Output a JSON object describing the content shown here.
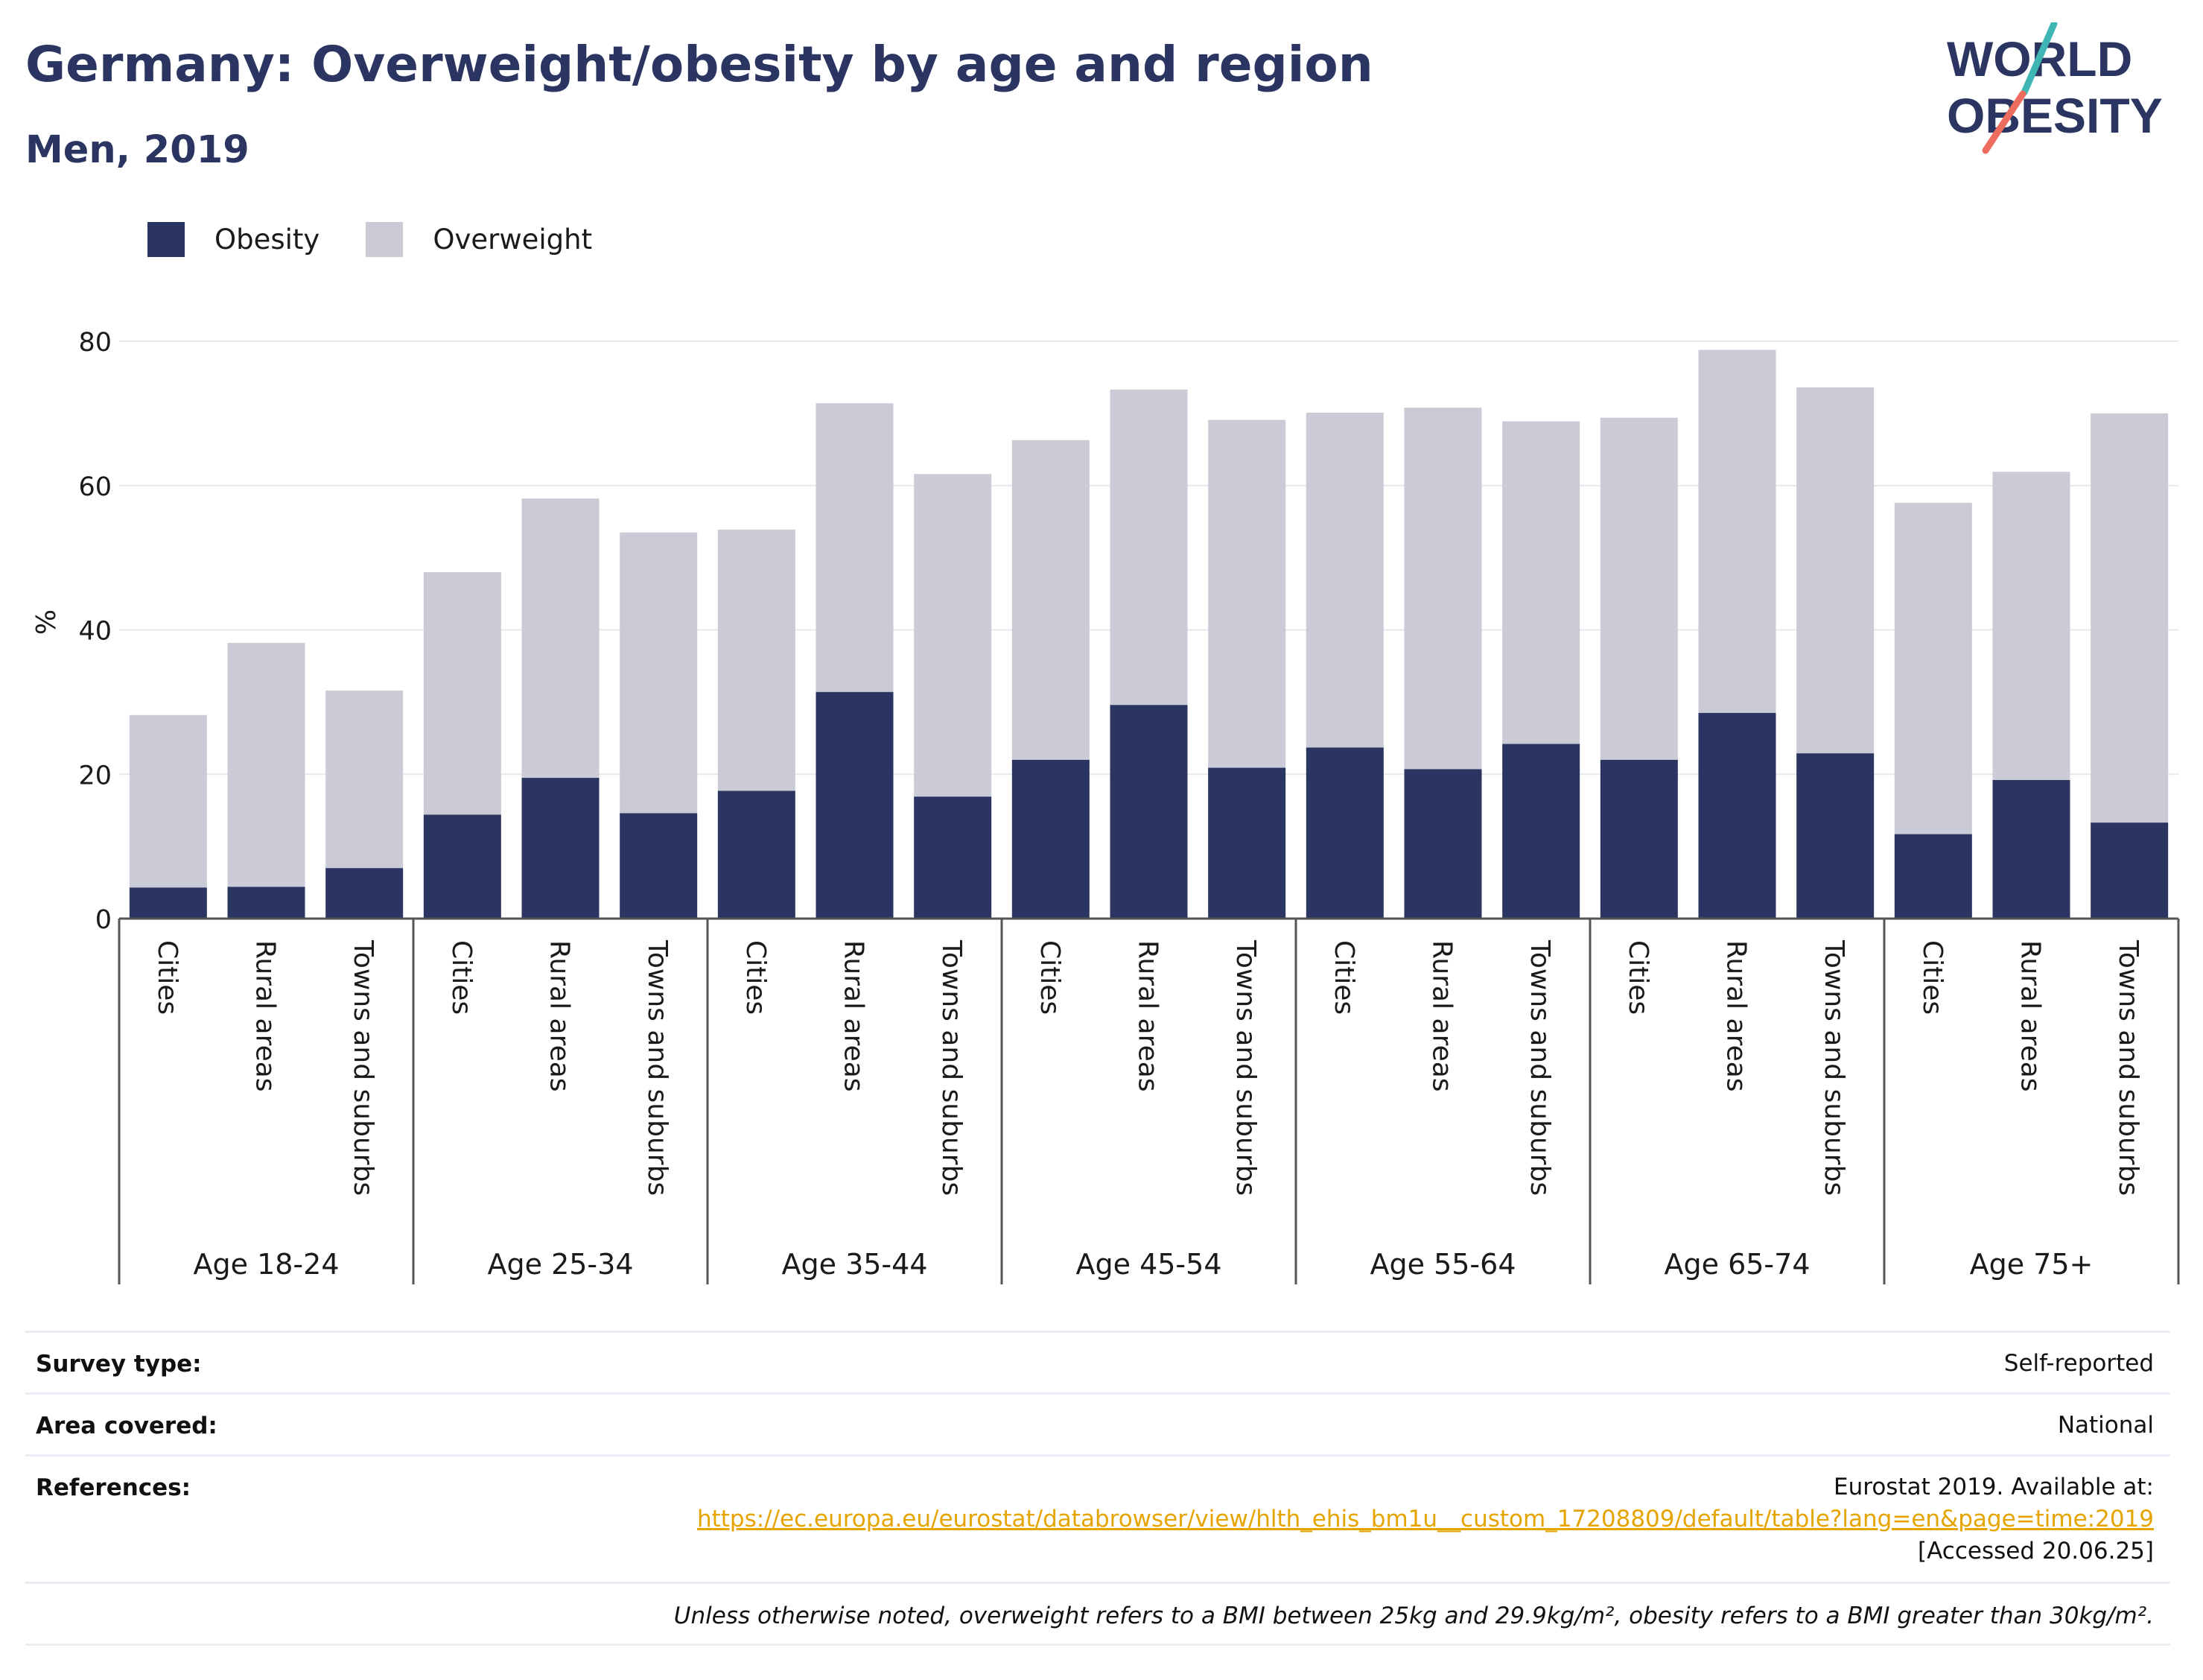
{
  "header": {
    "title": "Germany: Overweight/obesity by age and region",
    "subtitle": "Men, 2019"
  },
  "logo": {
    "line1": "WORLD",
    "line2": "OBESITY",
    "icon": "world-obesity-logo"
  },
  "colors": {
    "obesity": "#2b3561",
    "overweight": "#cacbd6",
    "title": "#2b3561",
    "link": "#e5a400",
    "logo_teal": "#3fb6b3",
    "logo_coral": "#ec6c5e"
  },
  "chart_data": {
    "type": "bar",
    "stacked": true,
    "ylabel": "%",
    "ylim": [
      0,
      80
    ],
    "yticks": [
      0,
      20,
      40,
      60,
      80
    ],
    "grid": true,
    "legend_position": "top-left",
    "groups": [
      "Age 18-24",
      "Age 25-34",
      "Age 35-44",
      "Age 45-54",
      "Age 55-64",
      "Age 65-74",
      "Age 75+"
    ],
    "subcategories": [
      "Cities",
      "Rural areas",
      "Towns and suburbs"
    ],
    "series": [
      {
        "name": "Obesity",
        "values": [
          4.3,
          4.4,
          7.0,
          14.4,
          19.5,
          14.6,
          17.7,
          31.4,
          16.9,
          22.0,
          29.6,
          20.9,
          23.7,
          20.7,
          24.2,
          22.0,
          28.5,
          22.9,
          11.7,
          19.2,
          13.3
        ]
      },
      {
        "name": "Overweight",
        "values": [
          23.9,
          33.8,
          24.6,
          33.6,
          38.7,
          38.9,
          36.2,
          40.0,
          44.7,
          44.3,
          43.7,
          48.2,
          46.4,
          50.1,
          44.7,
          47.4,
          50.3,
          50.7,
          45.9,
          42.7,
          56.7
        ]
      }
    ]
  },
  "info": {
    "survey_type_label": "Survey type:",
    "survey_type_value": "Self-reported",
    "area_label": "Area covered:",
    "area_value": "National",
    "references_label": "References:",
    "references_line1": "Eurostat 2019. Available at:",
    "references_link": "https://ec.europa.eu/eurostat/databrowser/view/hlth_ehis_bm1u__custom_17208809/default/table?lang=en&page=time:2019",
    "references_line3": "[Accessed 20.06.25]",
    "note": "Unless otherwise noted, overweight refers to a BMI between 25kg and 29.9kg/m², obesity refers to a BMI greater than 30kg/m²."
  }
}
